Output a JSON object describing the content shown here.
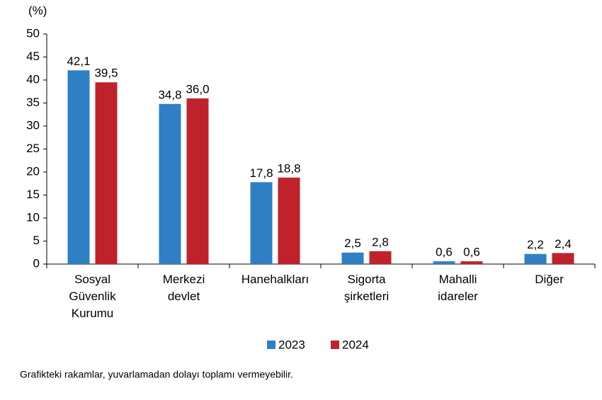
{
  "chart_data": {
    "type": "bar",
    "y_axis_label": "(%)",
    "categories": [
      "Sosyal Güvenlik Kurumu",
      "Merkezi devlet",
      "Hanehalkları",
      "Sigorta şirketleri",
      "Mahalli idareler",
      "Diğer"
    ],
    "series": [
      {
        "name": "2023",
        "color": "#2f7fc5",
        "values": [
          42.1,
          34.8,
          17.8,
          2.5,
          0.6,
          2.2
        ],
        "value_labels": [
          "42,1",
          "34,8",
          "17,8",
          "2,5",
          "0,6",
          "2,2"
        ]
      },
      {
        "name": "2024",
        "color": "#c0222b",
        "values": [
          39.5,
          36.0,
          18.8,
          2.8,
          0.6,
          2.4
        ],
        "value_labels": [
          "39,5",
          "36,0",
          "18,8",
          "2,8",
          "0,6",
          "2,4"
        ]
      }
    ],
    "ylim": [
      0,
      50
    ],
    "yticks": [
      0,
      5,
      10,
      15,
      20,
      25,
      30,
      35,
      40,
      45,
      50
    ],
    "legend": "bottom",
    "note": "Grafikteki rakamlar, yuvarlamadan dolayı toplamı vermeyebilir."
  }
}
